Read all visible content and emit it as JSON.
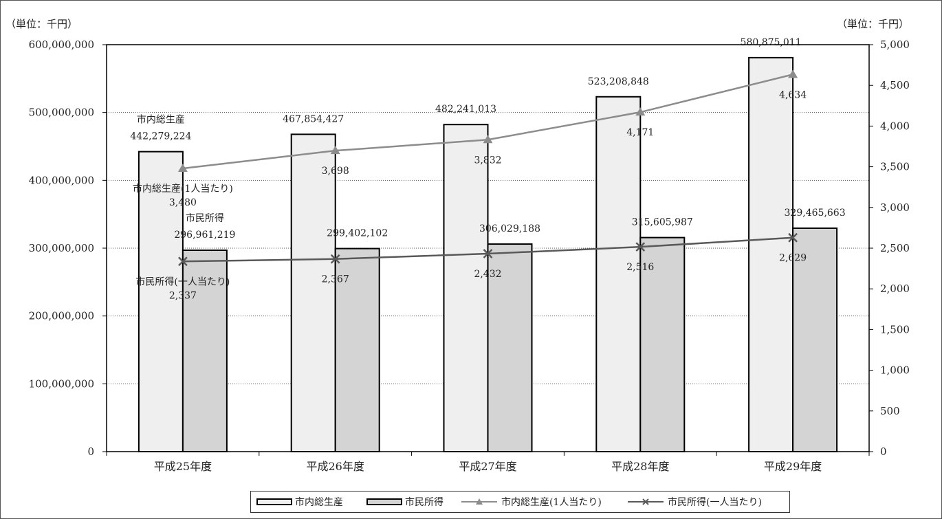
{
  "chart_data": {
    "type": "bar",
    "left_axis_unit": "（単位：千円）",
    "right_axis_unit": "（単位：千円）",
    "categories": [
      "平成25年度",
      "平成26年度",
      "平成27年度",
      "平成28年度",
      "平成29年度"
    ],
    "y_left": {
      "min": 0,
      "max": 600000000,
      "step": 100000000,
      "ticks": [
        "0",
        "100,000,000",
        "200,000,000",
        "300,000,000",
        "400,000,000",
        "500,000,000",
        "600,000,000"
      ]
    },
    "y_right": {
      "min": 0,
      "max": 5000,
      "step": 500,
      "ticks": [
        "0",
        "500",
        "1,000",
        "1,500",
        "2,000",
        "2,500",
        "3,000",
        "3,500",
        "4,000",
        "4,500",
        "5,000"
      ]
    },
    "grid": true,
    "legend_position": "bottom",
    "series": [
      {
        "name": "市内総生産",
        "kind": "bar",
        "axis": "left",
        "color": "#efefef",
        "values": [
          442279224,
          467854427,
          482241013,
          523208848,
          580875011
        ],
        "labels": [
          "442,279,224",
          "467,854,427",
          "482,241,013",
          "523,208,848",
          "580,875,011"
        ],
        "first_label_prefix": "市内総生産"
      },
      {
        "name": "市民所得",
        "kind": "bar",
        "axis": "left",
        "color": "#d4d4d4",
        "values": [
          296961219,
          299402102,
          306029188,
          315605987,
          329465663
        ],
        "labels": [
          "296,961,219",
          "299,402,102",
          "306,029,188",
          "315,605,987",
          "329,465,663"
        ],
        "first_label_prefix": "市民所得"
      },
      {
        "name": "市内総生産(1人当たり)",
        "kind": "line",
        "marker": "triangle",
        "axis": "right",
        "color": "#8c8c8c",
        "values": [
          3480,
          3698,
          3832,
          4171,
          4634
        ],
        "labels": [
          "3,480",
          "3,698",
          "3,832",
          "4,171",
          "4,634"
        ],
        "first_label_prefix": "市内総生産(1人当たり)"
      },
      {
        "name": "市民所得(一人当たり)",
        "kind": "line",
        "marker": "x",
        "axis": "right",
        "color": "#595959",
        "values": [
          2337,
          2367,
          2432,
          2516,
          2629
        ],
        "labels": [
          "2,337",
          "2,367",
          "2,432",
          "2,516",
          "2,629"
        ],
        "first_label_prefix": "市民所得(一人当たり)"
      }
    ]
  }
}
